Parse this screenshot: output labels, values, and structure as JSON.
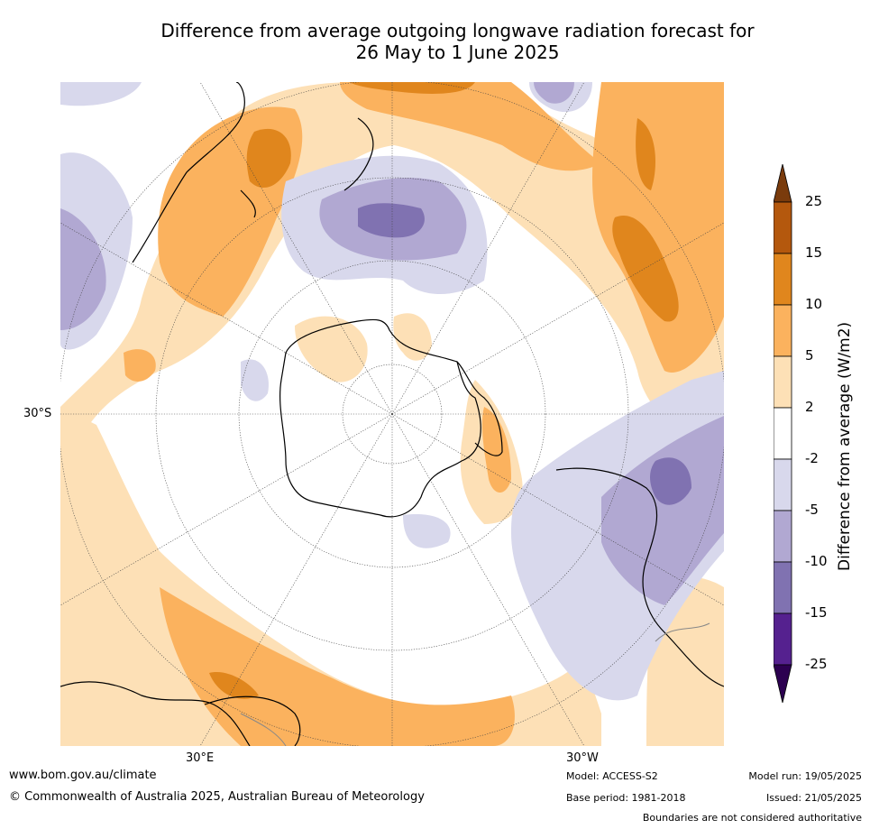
{
  "title_line1": "Difference from average outgoing longwave radiation forecast for",
  "title_line2": "26 May to 1 June 2025",
  "labels": {
    "lat30s": "30°S",
    "lon30e": "30°E",
    "lon30w": "30°W"
  },
  "colorbar": {
    "title": "Difference from average (W/m2)",
    "ticks": [
      "25",
      "15",
      "10",
      "5",
      "2",
      "-2",
      "-5",
      "-10",
      "-15",
      "-25"
    ],
    "colors": [
      "#7a3b0c",
      "#b4580d",
      "#e0861d",
      "#fbb25e",
      "#fde0b6",
      "#ffffff",
      "#d8d8ec",
      "#b1a8d2",
      "#8072b1",
      "#55218f",
      "#2c0050"
    ]
  },
  "footer": {
    "url": "www.bom.gov.au/climate",
    "copyright": "© Commonwealth of Australia 2025, Australian Bureau of Meteorology",
    "model": "Model: ACCESS-S2",
    "base_period": "Base period: 1981-2018",
    "model_run": "Model run: 19/05/2025",
    "issued": "Issued: 21/05/2025",
    "disclaimer": "Boundaries are not considered authoritative"
  }
}
